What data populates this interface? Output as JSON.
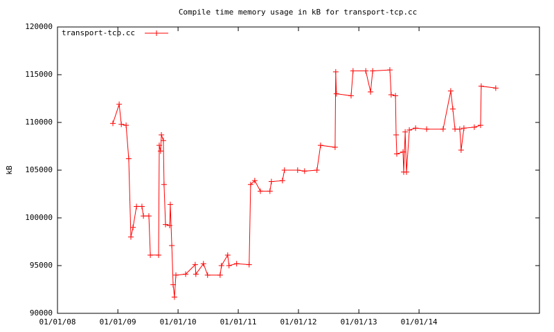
{
  "chart_data": {
    "type": "line",
    "title": "Compile time memory usage in kB for transport-tcp.cc",
    "y_label": "kB",
    "legend": "top-left",
    "grid": false,
    "xlim": [
      "2008-01-01",
      "2016-01-01"
    ],
    "xticks": [
      {
        "value": "2008-01-01",
        "label": "01/01/08"
      },
      {
        "value": "2009-01-01",
        "label": "01/01/09"
      },
      {
        "value": "2010-01-01",
        "label": "01/01/10"
      },
      {
        "value": "2011-01-01",
        "label": "01/01/11"
      },
      {
        "value": "2012-01-01",
        "label": "01/01/12"
      },
      {
        "value": "2013-01-01",
        "label": "01/01/13"
      },
      {
        "value": "2014-01-01",
        "label": "01/01/14"
      }
    ],
    "ylim": [
      90000,
      120000
    ],
    "yticks": [
      90000,
      95000,
      100000,
      105000,
      110000,
      115000,
      120000
    ],
    "series": [
      {
        "name": "transport-tcp.cc",
        "color": "#ff0000",
        "x": [
          "2008-12-02",
          "2009-01-09",
          "2009-01-22",
          "2009-02-20",
          "2009-03-08",
          "2009-03-21",
          "2009-04-03",
          "2009-04-24",
          "2009-05-27",
          "2009-06-05",
          "2009-07-08",
          "2009-07-17",
          "2009-09-05",
          "2009-09-09",
          "2009-09-17",
          "2009-09-22",
          "2009-10-04",
          "2009-10-08",
          "2009-10-17",
          "2009-11-11",
          "2009-11-15",
          "2009-11-24",
          "2009-12-02",
          "2009-12-10",
          "2009-12-19",
          "2010-02-16",
          "2010-04-15",
          "2010-04-19",
          "2010-06-04",
          "2010-06-29",
          "2010-09-13",
          "2010-09-21",
          "2010-10-29",
          "2010-11-06",
          "2010-12-22",
          "2011-03-08",
          "2011-03-17",
          "2011-04-11",
          "2011-05-15",
          "2011-07-12",
          "2011-07-21",
          "2011-09-26",
          "2011-10-08",
          "2011-12-27",
          "2012-02-07",
          "2012-04-22",
          "2012-05-14",
          "2012-08-10",
          "2012-08-14",
          "2012-08-18",
          "2012-11-15",
          "2012-11-27",
          "2013-02-12",
          "2013-03-13",
          "2013-03-26",
          "2013-07-08",
          "2013-07-16",
          "2013-08-11",
          "2013-08-15",
          "2013-08-19",
          "2013-09-26",
          "2013-09-30",
          "2013-10-09",
          "2013-10-17",
          "2013-11-03",
          "2013-12-11",
          "2014-02-16",
          "2014-05-27",
          "2014-07-12",
          "2014-07-25",
          "2014-08-07",
          "2014-09-05",
          "2014-09-13",
          "2014-09-30",
          "2014-12-02",
          "2015-01-09",
          "2015-01-13",
          "2015-04-11"
        ],
        "values": [
          109900,
          111900,
          109800,
          109700,
          106200,
          98000,
          99000,
          101200,
          101200,
          100200,
          100200,
          96100,
          96100,
          107600,
          107000,
          108700,
          108100,
          103500,
          99300,
          99200,
          101400,
          97100,
          93000,
          91700,
          94000,
          94100,
          95100,
          94100,
          95200,
          94000,
          94000,
          95000,
          96100,
          95000,
          95200,
          95100,
          103500,
          103900,
          102800,
          102800,
          103800,
          103900,
          105000,
          105000,
          104900,
          105000,
          107600,
          107400,
          115300,
          113000,
          112800,
          115400,
          115400,
          113200,
          115400,
          115500,
          112900,
          112800,
          108700,
          106700,
          106900,
          104800,
          109000,
          104800,
          109200,
          109400,
          109300,
          109300,
          113300,
          111400,
          109300,
          109300,
          107100,
          109400,
          109500,
          109700,
          113800,
          113600
        ]
      }
    ]
  }
}
